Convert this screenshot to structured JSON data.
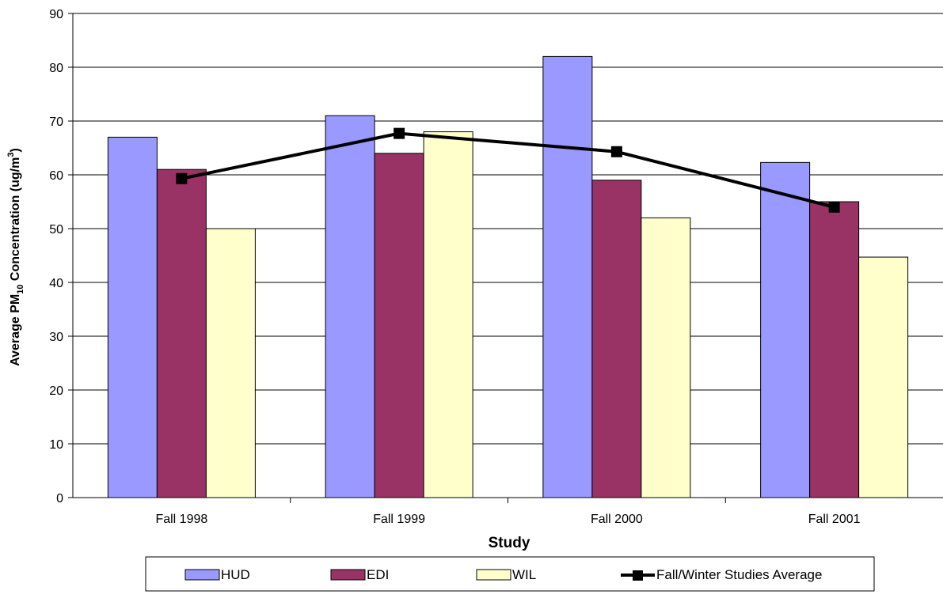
{
  "chart_data": {
    "type": "bar",
    "categories": [
      "Fall 1998",
      "Fall 1999",
      "Fall 2000",
      "Fall 2001"
    ],
    "series": [
      {
        "name": "HUD",
        "type": "bar",
        "color": "#9999ff",
        "values": [
          67,
          71,
          82,
          62.3
        ]
      },
      {
        "name": "EDI",
        "type": "bar",
        "color": "#993366",
        "values": [
          61,
          64,
          59,
          55
        ]
      },
      {
        "name": "WIL",
        "type": "bar",
        "color": "#ffffcc",
        "values": [
          50,
          68,
          52,
          44.7
        ]
      },
      {
        "name": "Fall/Winter Studies Average",
        "type": "line",
        "color": "#000000",
        "values": [
          59.3,
          67.7,
          64.3,
          54
        ]
      }
    ],
    "xlabel": "Study",
    "ylabel": {
      "prefix": "Average PM",
      "sub": "10",
      "middle": " Concentration (ug/m",
      "sup": "3",
      "suffix": ")"
    },
    "ylim": [
      0,
      90
    ],
    "yticks": [
      0,
      10,
      20,
      30,
      40,
      50,
      60,
      70,
      80,
      90
    ],
    "grid": true,
    "legend_position": "bottom"
  }
}
